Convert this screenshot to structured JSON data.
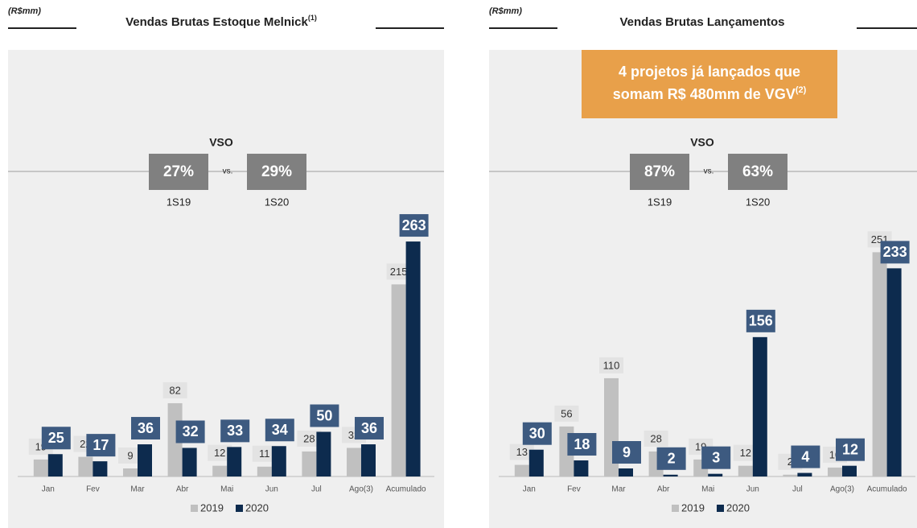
{
  "chart_data": [
    {
      "type": "bar",
      "unit": "(R$mm)",
      "title": "Vendas Brutas Estoque Melnick",
      "title_note": "(1)",
      "vso": {
        "label": "VSO",
        "separator": "vs.",
        "values": [
          27,
          29
        ],
        "value_labels": [
          "27%",
          "29%"
        ],
        "periods": [
          "1S19",
          "1S20"
        ]
      },
      "categories": [
        "Jan",
        "Fev",
        "Mar",
        "Abr",
        "Mai",
        "Jun",
        "Jul",
        "Ago(3)",
        "Acumulado"
      ],
      "series": [
        {
          "name": "2019",
          "color": "#c0c0c0",
          "values": [
            19,
            22,
            9,
            82,
            12,
            11,
            28,
            32,
            215
          ]
        },
        {
          "name": "2020",
          "color": "#0d2b4e",
          "values": [
            25,
            17,
            36,
            32,
            33,
            34,
            50,
            36,
            263
          ]
        }
      ],
      "ylim": [
        0,
        300
      ],
      "legend": "bottom"
    },
    {
      "type": "bar",
      "unit": "(R$mm)",
      "title": "Vendas Brutas Lançamentos",
      "annotation": [
        "4 projetos já lançados que",
        "somam R$ 480mm de VGV"
      ],
      "annotation_note": "(2)",
      "vso": {
        "label": "VSO",
        "separator": "vs.",
        "values": [
          87,
          63
        ],
        "value_labels": [
          "87%",
          "63%"
        ],
        "periods": [
          "1S19",
          "1S20"
        ]
      },
      "categories": [
        "Jan",
        "Fev",
        "Mar",
        "Abr",
        "Mai",
        "Jun",
        "Jul",
        "Ago(3)",
        "Acumulado"
      ],
      "series": [
        {
          "name": "2019",
          "color": "#c0c0c0",
          "values": [
            13,
            56,
            110,
            28,
            19,
            12,
            2,
            10,
            251
          ]
        },
        {
          "name": "2020",
          "color": "#0d2b4e",
          "values": [
            30,
            18,
            9,
            2,
            3,
            156,
            4,
            12,
            233
          ]
        }
      ],
      "ylim": [
        0,
        300
      ],
      "legend": "bottom"
    }
  ]
}
